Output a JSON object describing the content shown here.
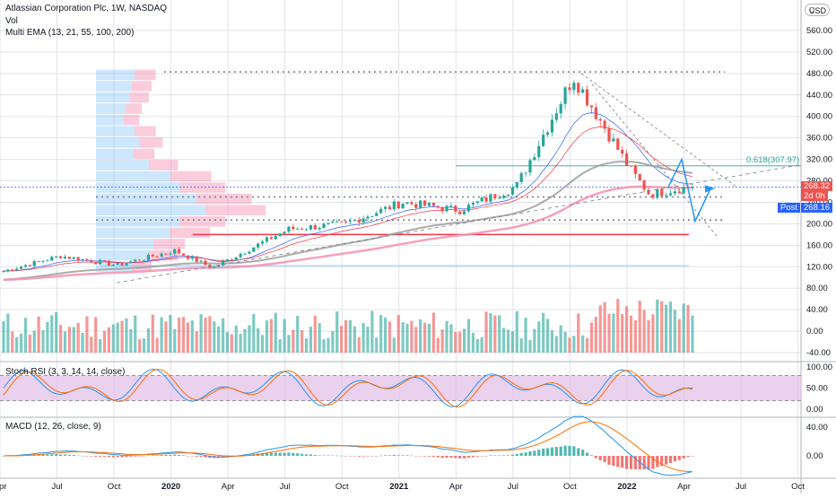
{
  "header": {
    "title": "Atlassian Corporation Plc, 1W, NASDAQ",
    "vol_label": "Vol",
    "ema_label": "Multi EMA (13, 21, 55, 100, 200)",
    "currency": "USD"
  },
  "indicators": {
    "stoch_label": "Stoch RSI (3, 3, 14, 14, close)",
    "macd_label": "MACD (12, 26, close, 9)"
  },
  "price_tags": {
    "last_price": "268.32",
    "countdown": "2d 0h",
    "post_label": "Post",
    "post_price": "268.16",
    "fib_label": "0.618(307.97)"
  },
  "colors": {
    "up": "#26a69a",
    "down": "#ef5350",
    "grid": "#e0e3eb",
    "stoch_band": "#e1bee7",
    "macd_line": "#2196f3",
    "signal_line": "#ff6d00"
  },
  "chart_data": {
    "type": "candlestick",
    "title": "Atlassian Corporation Plc, 1W, NASDAQ",
    "x_ticks": [
      "Apr",
      "Jul",
      "Oct",
      "2020",
      "Apr",
      "Jul",
      "Oct",
      "2021",
      "Apr",
      "Jul",
      "Oct",
      "2022",
      "Apr",
      "Jul",
      "Oct"
    ],
    "y_ticks": [
      "560.00",
      "520.00",
      "480.00",
      "440.00",
      "400.00",
      "360.00",
      "320.00",
      "280.00",
      "240.00",
      "200.00",
      "160.00",
      "120.00",
      "80.00",
      "40.00",
      "0.00",
      "-40.00"
    ],
    "stoch_ticks": [
      "100.00",
      "50.00",
      "0.00"
    ],
    "macd_ticks": [
      "40.00",
      "0.00"
    ],
    "key_points": [
      {
        "time": "Apr 2019",
        "price": 112
      },
      {
        "time": "Jul 2019",
        "price": 140
      },
      {
        "time": "Oct 2019",
        "price": 123
      },
      {
        "time": "Jan 2020",
        "price": 150
      },
      {
        "time": "Mar 2020",
        "price": 118
      },
      {
        "time": "Jul 2020",
        "price": 190
      },
      {
        "time": "Oct 2020",
        "price": 200
      },
      {
        "time": "Jan 2021",
        "price": 240
      },
      {
        "time": "Apr 2021",
        "price": 225
      },
      {
        "time": "Jul 2021",
        "price": 270
      },
      {
        "time": "Oct 2021",
        "price": 475
      },
      {
        "time": "Jan 2022",
        "price": 300
      },
      {
        "time": "Feb 2022",
        "price": 255
      },
      {
        "time": "Apr 2022",
        "price": 268.32
      }
    ],
    "levels": [
      {
        "name": "ATH line",
        "price": 483
      },
      {
        "name": "Fib 0.618",
        "price": 307.97
      },
      {
        "name": "Support 1",
        "price": 250
      },
      {
        "name": "Support 2",
        "price": 207
      },
      {
        "name": "Red line",
        "price": 180
      },
      {
        "name": "Blue line",
        "price": 122
      }
    ],
    "last_price": 268.32,
    "post_price": 268.16,
    "ylim": [
      -55,
      590
    ]
  }
}
